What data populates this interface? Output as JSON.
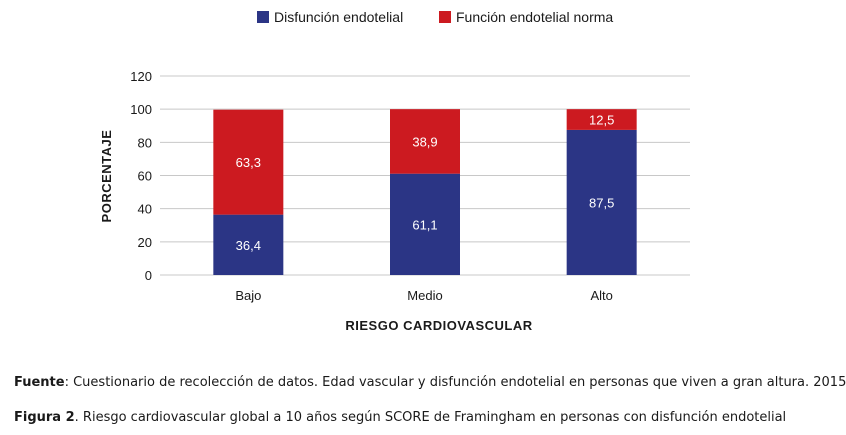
{
  "chart_data": {
    "type": "bar",
    "stacked": true,
    "categories": [
      "Bajo",
      "Medio",
      "Alto"
    ],
    "series": [
      {
        "name": "Disfunción endotelial",
        "color": "#2b3585",
        "values": [
          36.4,
          61.1,
          87.5
        ],
        "labels": [
          "36,4",
          "61,1",
          "87,5"
        ]
      },
      {
        "name": "Función endotelial norma",
        "color": "#cc1a20",
        "values": [
          63.3,
          38.9,
          12.5
        ],
        "labels": [
          "63,3",
          "38,9",
          "12,5"
        ]
      }
    ],
    "xlabel": "RIESGO CARDIOVASCULAR",
    "ylabel": "PORCENTAJE",
    "ylim": [
      0,
      120
    ],
    "yticks": [
      0,
      20,
      40,
      60,
      80,
      100,
      120
    ],
    "grid": true,
    "legend_position": "top-center"
  },
  "captions": {
    "source_label": "Fuente",
    "source_text": ": Cuestionario de recolección de datos. Edad vascular y disfunción endotelial en personas que viven a gran altura. 2015",
    "figure_label": "Figura 2",
    "figure_text": ". Riesgo cardiovascular global a 10 años según SCORE de Framingham en personas con disfunción endotelial"
  }
}
